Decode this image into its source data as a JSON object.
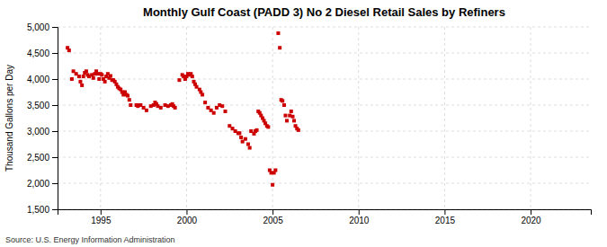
{
  "chart_data": {
    "type": "scatter",
    "title": "Monthly Gulf Coast (PADD 3) No 2 Diesel Retail Sales by Refiners",
    "ylabel": "Thousand Gallons per Day",
    "annotations": [
      "Source: U.S. Energy Information Administration"
    ],
    "color": "#cc0000",
    "marker": "square",
    "grid": true,
    "xlim": [
      1992.5,
      2023.5
    ],
    "xticks": [
      1995,
      2000,
      2005,
      2010,
      2015,
      2020
    ],
    "ylim": [
      1500,
      5000
    ],
    "yticks": [
      {
        "value": 1500,
        "label": "1,500"
      },
      {
        "value": 2000,
        "label": "2,000"
      },
      {
        "value": 2500,
        "label": "2,500"
      },
      {
        "value": 3000,
        "label": "3,000"
      },
      {
        "value": 3500,
        "label": "3,500"
      },
      {
        "value": 4000,
        "label": "4,000"
      },
      {
        "value": 4500,
        "label": "4,500"
      },
      {
        "value": 5000,
        "label": "5,000"
      }
    ],
    "x": [
      1993.08,
      1993.17,
      1993.33,
      1993.42,
      1993.58,
      1993.75,
      1993.83,
      1993.92,
      1994.0,
      1994.08,
      1994.17,
      1994.25,
      1994.33,
      1994.5,
      1994.58,
      1994.67,
      1994.75,
      1994.83,
      1994.92,
      1995.0,
      1995.08,
      1995.17,
      1995.25,
      1995.33,
      1995.42,
      1995.5,
      1995.58,
      1995.67,
      1995.75,
      1995.83,
      1995.92,
      1996.0,
      1996.08,
      1996.17,
      1996.25,
      1996.33,
      1996.42,
      1996.5,
      1996.58,
      1996.67,
      1996.75,
      1997.08,
      1997.17,
      1997.25,
      1997.33,
      1997.5,
      1997.67,
      1997.92,
      1998.08,
      1998.17,
      1998.25,
      1998.33,
      1998.5,
      1998.75,
      1998.92,
      1999.08,
      1999.17,
      1999.25,
      1999.33,
      1999.58,
      1999.75,
      1999.83,
      1999.92,
      2000.0,
      2000.08,
      2000.17,
      2000.25,
      2000.33,
      2000.42,
      2000.5,
      2000.58,
      2000.75,
      2000.83,
      2000.92,
      2001.08,
      2001.25,
      2001.42,
      2001.58,
      2001.75,
      2001.92,
      2002.08,
      2002.25,
      2002.5,
      2002.67,
      2002.83,
      2003.0,
      2003.08,
      2003.17,
      2003.25,
      2003.42,
      2003.58,
      2003.67,
      2003.75,
      2003.92,
      2004.0,
      2004.08,
      2004.17,
      2004.25,
      2004.33,
      2004.42,
      2004.5,
      2004.58,
      2004.67,
      2004.75,
      2004.83,
      2004.92,
      2005.0,
      2005.08,
      2005.17,
      2005.33,
      2005.42,
      2005.5,
      2005.58,
      2005.67,
      2005.75,
      2005.83,
      2006.0,
      2006.08,
      2006.17,
      2006.25,
      2006.33,
      2006.42,
      2006.5
    ],
    "values": [
      4600,
      4550,
      4000,
      4150,
      4100,
      4050,
      3950,
      3880,
      4050,
      4120,
      4150,
      4080,
      4050,
      4080,
      4020,
      4100,
      4150,
      4100,
      4000,
      4100,
      4080,
      4000,
      3950,
      4050,
      4100,
      4020,
      4060,
      3980,
      3980,
      3950,
      3900,
      3850,
      3820,
      3800,
      3750,
      3700,
      3750,
      3700,
      3680,
      3600,
      3500,
      3500,
      3480,
      3500,
      3500,
      3450,
      3400,
      3480,
      3500,
      3550,
      3520,
      3480,
      3450,
      3500,
      3480,
      3500,
      3520,
      3480,
      3450,
      3980,
      4080,
      4050,
      4000,
      4050,
      4100,
      4080,
      4100,
      4050,
      3950,
      3900,
      3850,
      3800,
      3750,
      3700,
      3550,
      3450,
      3400,
      3350,
      3450,
      3500,
      3480,
      3380,
      3100,
      3050,
      3000,
      2960,
      2960,
      2880,
      2800,
      2850,
      2750,
      2680,
      3000,
      2950,
      3000,
      3020,
      3380,
      3350,
      3300,
      3250,
      3200,
      3150,
      3100,
      3080,
      2250,
      2200,
      1970,
      2200,
      2250,
      4880,
      4600,
      3600,
      3580,
      3500,
      3300,
      3200,
      3300,
      3380,
      3280,
      3200,
      3100,
      3050,
      3020
    ]
  }
}
